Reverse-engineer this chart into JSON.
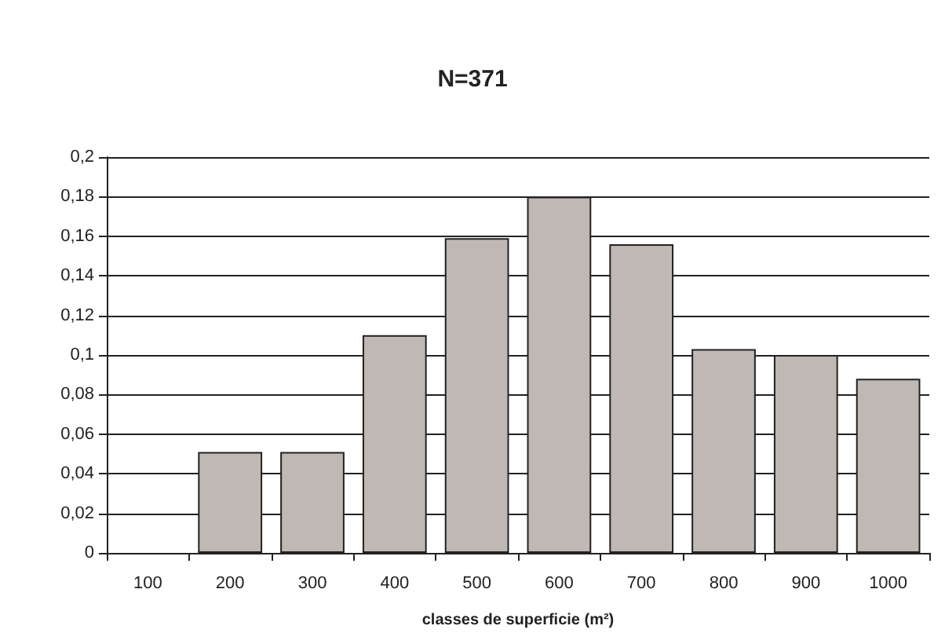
{
  "chart_data": {
    "type": "bar",
    "title": "N=371",
    "xlabel": "classes de superficie (m²)",
    "categories": [
      "100",
      "200",
      "300",
      "400",
      "500",
      "600",
      "700",
      "800",
      "900",
      "1000"
    ],
    "values": [
      0,
      0.051,
      0.051,
      0.11,
      0.159,
      0.18,
      0.156,
      0.103,
      0.1,
      0.088
    ],
    "color": "#c0b8b4",
    "ylim": [
      0,
      0.2
    ],
    "yticks": [
      0,
      {
        "value": 0.02,
        "label": "0,02"
      },
      {
        "value": 0.04,
        "label": "0,04"
      },
      {
        "value": 0.06,
        "label": "0,06"
      },
      {
        "value": 0.08,
        "label": "0,08"
      },
      {
        "value": 0.1,
        "label": "0,1"
      },
      {
        "value": 0.12,
        "label": "0,12"
      },
      {
        "value": 0.14,
        "label": "0,14"
      },
      {
        "value": 0.16,
        "label": "0,16"
      },
      {
        "value": 0.18,
        "label": "0,18"
      },
      {
        "value": 0.2,
        "label": "0,2"
      }
    ],
    "grid": "y"
  }
}
